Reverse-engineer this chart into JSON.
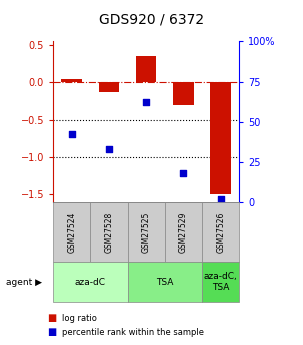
{
  "title": "GDS920 / 6372",
  "samples": [
    "GSM27524",
    "GSM27528",
    "GSM27525",
    "GSM27529",
    "GSM27526"
  ],
  "log_ratio": [
    0.05,
    -0.13,
    0.35,
    -0.3,
    -1.5
  ],
  "percentile": [
    0.42,
    0.33,
    0.62,
    0.18,
    0.02
  ],
  "agents": [
    {
      "label": "aza-dC",
      "cols": [
        0,
        1
      ],
      "color": "#bbffbb"
    },
    {
      "label": "TSA",
      "cols": [
        2,
        3
      ],
      "color": "#88ee88"
    },
    {
      "label": "aza-dC,\nTSA",
      "cols": [
        4,
        4
      ],
      "color": "#55dd55"
    }
  ],
  "bar_color": "#cc1100",
  "dot_color": "#0000cc",
  "ylim_left": [
    -1.6,
    0.55
  ],
  "yticks_left": [
    0.5,
    0.0,
    -0.5,
    -1.0,
    -1.5
  ],
  "yticks_right_vals": [
    1.0,
    0.75,
    0.5,
    0.25,
    0.0
  ],
  "yticks_right_labels": [
    "100%",
    "75",
    "50",
    "25",
    "0"
  ],
  "hline_y": 0.0,
  "dotted_lines": [
    -0.5,
    -1.0
  ],
  "bar_width": 0.55,
  "title_fontsize": 10,
  "tick_fontsize": 7,
  "label_fontsize": 7
}
